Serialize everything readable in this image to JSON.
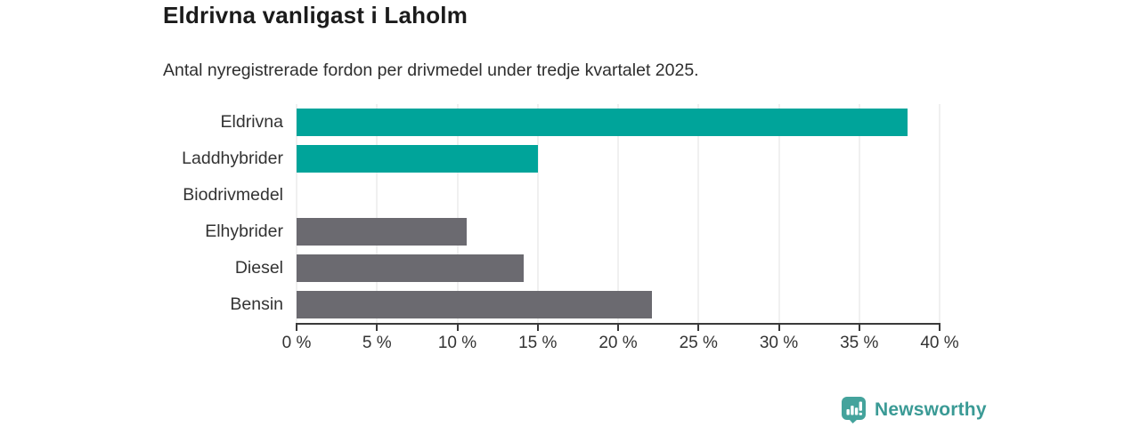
{
  "header": {
    "title": "Eldrivna vanligast i Laholm",
    "subtitle": "Antal nyregistrerade fordon per drivmedel under tredje kvartalet 2025."
  },
  "chart_data": {
    "type": "bar",
    "orientation": "horizontal",
    "title": "Eldrivna vanligast i Laholm",
    "subtitle": "Antal nyregistrerade fordon per drivmedel under tredje kvartalet 2025.",
    "categories": [
      "Eldrivna",
      "Laddhybrider",
      "Biodrivmedel",
      "Elhybrider",
      "Diesel",
      "Bensin"
    ],
    "values": [
      38,
      15,
      0,
      10.6,
      14.1,
      22.1
    ],
    "unit": "%",
    "xlabel": "",
    "ylabel": "",
    "xlim": [
      0,
      40
    ],
    "grid": true,
    "legend": false,
    "ticks": [
      {
        "value": 0,
        "label": "0 %"
      },
      {
        "value": 5,
        "label": "5 %"
      },
      {
        "value": 10,
        "label": "10 %"
      },
      {
        "value": 15,
        "label": "15 %"
      },
      {
        "value": 20,
        "label": "20 %"
      },
      {
        "value": 25,
        "label": "25 %"
      },
      {
        "value": 30,
        "label": "30 %"
      },
      {
        "value": 35,
        "label": "35 %"
      },
      {
        "value": 40,
        "label": "40 %"
      }
    ],
    "bar_colors": [
      "#00a49a",
      "#00a49a",
      "#6b6a70",
      "#6b6a70",
      "#6b6a70",
      "#6b6a70"
    ]
  },
  "theme": {
    "accent_teal": "#00a49a",
    "bar_gray": "#6b6a70",
    "axis_color": "#3a3a3a",
    "grid_color": "#e2e2e2",
    "text_color": "#333333",
    "title_color": "#1b1b1b",
    "brand_teal": "#3a9a95",
    "logo_badge_teal": "#44a39c"
  },
  "footer": {
    "brand": "Newsworthy"
  }
}
